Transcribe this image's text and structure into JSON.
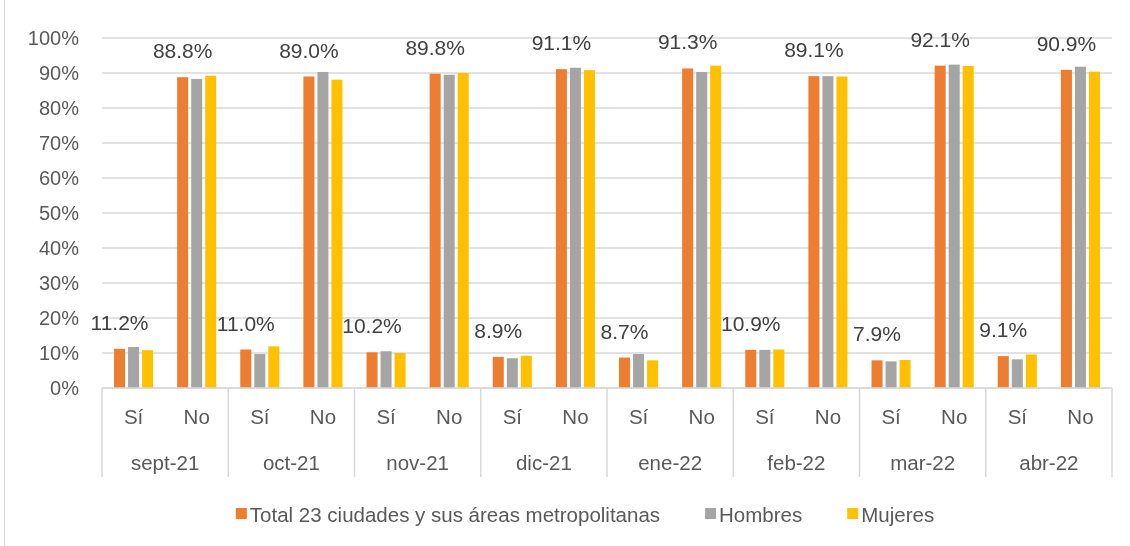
{
  "chart_data": {
    "type": "bar",
    "categories": [
      "Sí",
      "No",
      "Sí",
      "No",
      "Sí",
      "No",
      "Sí",
      "No",
      "Sí",
      "No",
      "Sí",
      "No",
      "Sí",
      "No",
      "Sí",
      "No"
    ],
    "annotations": [
      "sept-21",
      "oct-21",
      "nov-21",
      "dic-21",
      "ene-22",
      "feb-22",
      "mar-22",
      "abr-22"
    ],
    "series": [
      {
        "name": "Total 23 ciudades y sus áreas metropolitanas",
        "color": "#ed7d31",
        "values": [
          11.2,
          88.8,
          11.0,
          89.0,
          10.2,
          89.8,
          8.9,
          91.1,
          8.7,
          91.3,
          10.9,
          89.1,
          7.9,
          92.1,
          9.1,
          90.9
        ],
        "value_labels": [
          "11.2%",
          "88.8%",
          "11.0%",
          "89.0%",
          "10.2%",
          "89.8%",
          "8.9%",
          "91.1%",
          "8.7%",
          "91.3%",
          "10.9%",
          "89.1%",
          "7.9%",
          "92.1%",
          "9.1%",
          "90.9%"
        ]
      },
      {
        "name": "Hombres",
        "color": "#a5a5a5",
        "values": [
          11.7,
          88.3,
          9.7,
          90.3,
          10.5,
          89.5,
          8.5,
          91.5,
          9.7,
          90.3,
          10.9,
          89.1,
          7.6,
          92.4,
          8.2,
          91.8
        ]
      },
      {
        "name": "Mujeres",
        "color": "#ffc000",
        "values": [
          10.8,
          89.2,
          11.9,
          88.1,
          10.0,
          90.0,
          9.2,
          90.8,
          7.9,
          92.1,
          11.0,
          89.0,
          8.0,
          92.0,
          9.6,
          90.4
        ]
      }
    ],
    "ylim": [
      0,
      100
    ],
    "yticks": [
      {
        "value": 0,
        "label": "0%"
      },
      {
        "value": 10,
        "label": "10%"
      },
      {
        "value": 20,
        "label": "20%"
      },
      {
        "value": 30,
        "label": "30%"
      },
      {
        "value": 40,
        "label": "40%"
      },
      {
        "value": 50,
        "label": "50%"
      },
      {
        "value": 60,
        "label": "60%"
      },
      {
        "value": 70,
        "label": "70%"
      },
      {
        "value": 80,
        "label": "80%"
      },
      {
        "value": 90,
        "label": "90%"
      },
      {
        "value": 100,
        "label": "100%"
      }
    ],
    "grid": true,
    "legend": "bottom"
  }
}
